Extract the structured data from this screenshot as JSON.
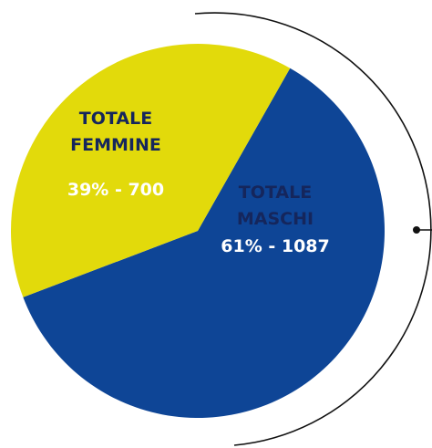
{
  "chart_data": {
    "type": "pie",
    "categories": [
      "TOTALE MASCHI",
      "TOTALE FEMMINE"
    ],
    "values": [
      61,
      39
    ],
    "value_labels": [
      "61% - 1087",
      "39% - 700"
    ],
    "colors": [
      "#0e4596",
      "#e2da0b"
    ]
  }
}
